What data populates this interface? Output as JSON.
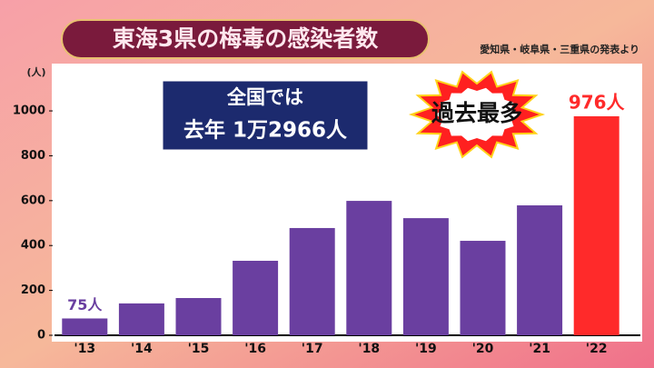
{
  "chart_data": {
    "type": "bar",
    "title": "東海3県の梅毒の感染者数",
    "source": "愛知県・岐阜県・三重県の発表より",
    "y_axis_label": "(人)",
    "callout_lines": [
      "全国では",
      "去年 1万2966人"
    ],
    "badge": "過去最多",
    "categories": [
      "'13",
      "'14",
      "'15",
      "'16",
      "'17",
      "'18",
      "'19",
      "'20",
      "'21",
      "'22"
    ],
    "values": [
      75,
      142,
      166,
      332,
      478,
      599,
      522,
      421,
      579,
      976
    ],
    "value_labels": [
      "75人",
      null,
      null,
      null,
      null,
      null,
      null,
      null,
      null,
      "976人"
    ],
    "colors": [
      "#6a3fa0",
      "#6a3fa0",
      "#6a3fa0",
      "#6a3fa0",
      "#6a3fa0",
      "#6a3fa0",
      "#6a3fa0",
      "#6a3fa0",
      "#6a3fa0",
      "#ff2a2a"
    ],
    "ylim": [
      0,
      1150
    ],
    "yticks": [
      0,
      200,
      400,
      600,
      800,
      1000
    ],
    "grid": false
  }
}
